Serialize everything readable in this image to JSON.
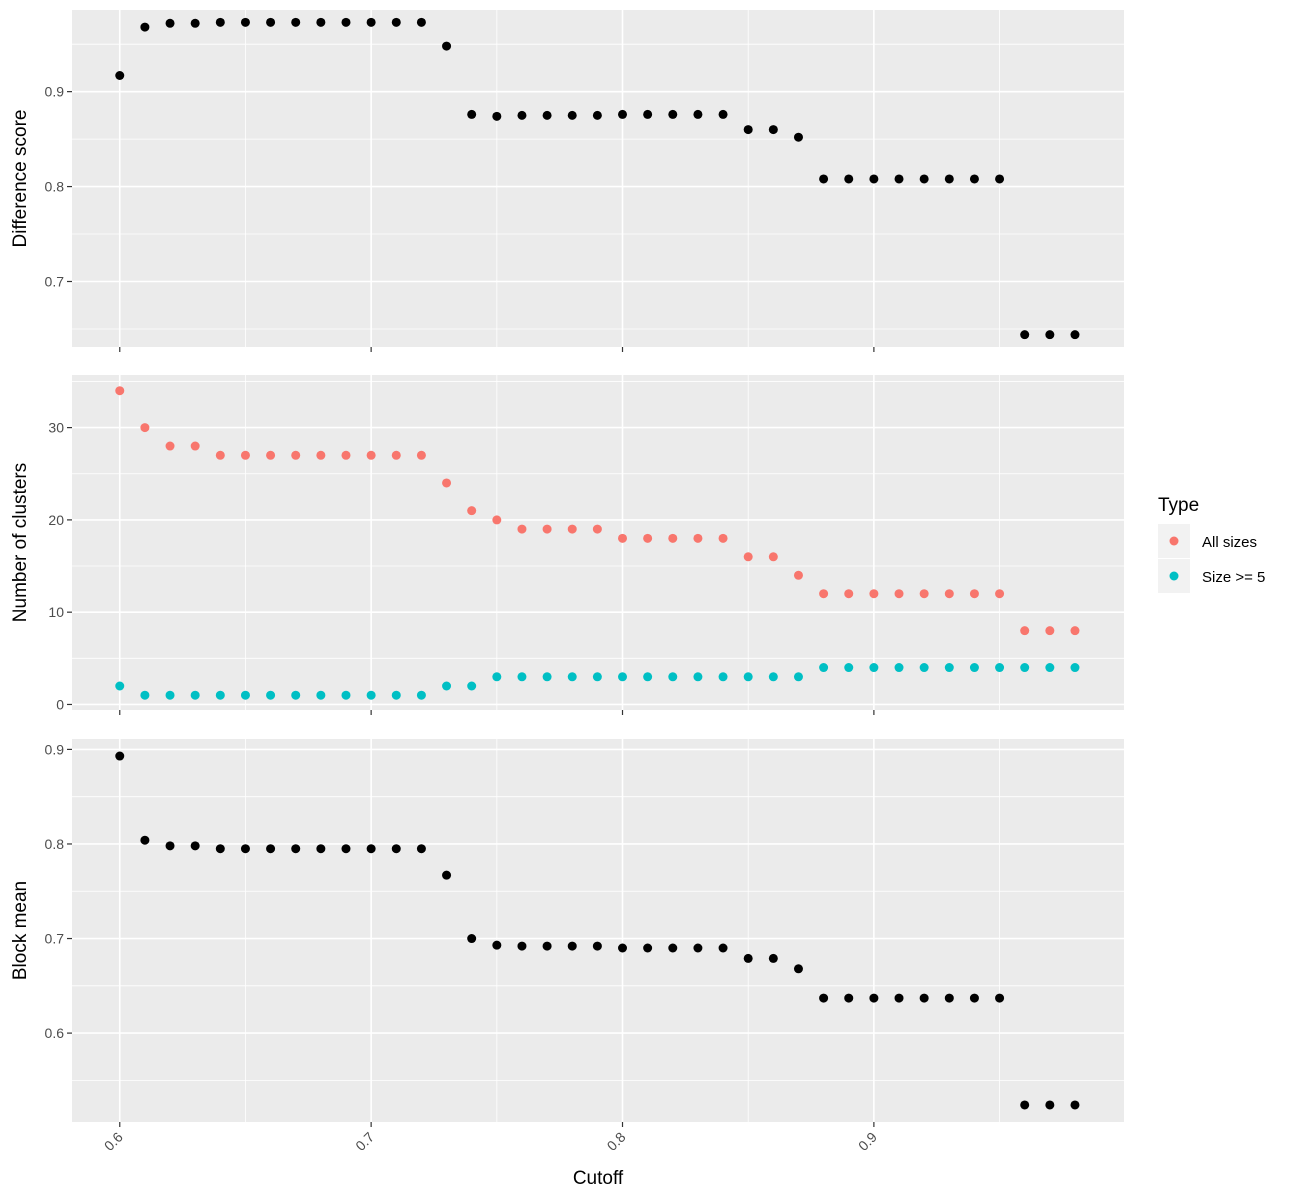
{
  "chart_data": {
    "type": "scatter",
    "xlabel": "Cutoff",
    "x_ticks": [
      "0.6",
      "0.7",
      "0.8",
      "0.9"
    ],
    "x_tick_values": [
      0.6,
      0.7,
      0.8,
      0.9
    ],
    "xlim": [
      0.581,
      0.9995
    ],
    "grid": true,
    "legend": {
      "title": "Type",
      "position": "right",
      "entries": [
        {
          "label": "All sizes",
          "color": "#F8766D"
        },
        {
          "label": "Size >= 5",
          "color": "#00BFC4"
        }
      ]
    },
    "x": [
      0.6,
      0.61,
      0.62,
      0.63,
      0.64,
      0.65,
      0.66,
      0.67,
      0.68,
      0.69,
      0.7,
      0.71,
      0.72,
      0.73,
      0.74,
      0.75,
      0.76,
      0.77,
      0.78,
      0.79,
      0.8,
      0.81,
      0.82,
      0.83,
      0.84,
      0.85,
      0.86,
      0.87,
      0.88,
      0.89,
      0.9,
      0.91,
      0.92,
      0.93,
      0.94,
      0.95,
      0.96,
      0.97,
      0.98
    ],
    "panels": [
      {
        "ylabel": "Difference score",
        "y_ticks": [
          "0.7",
          "0.8",
          "0.9"
        ],
        "y_tick_values": [
          0.7,
          0.8,
          0.9
        ],
        "ylim": [
          0.631,
          0.986
        ],
        "series": [
          {
            "color": "#000000",
            "values": [
              0.917,
              0.968,
              0.972,
              0.972,
              0.973,
              0.973,
              0.973,
              0.973,
              0.973,
              0.973,
              0.973,
              0.973,
              0.973,
              0.948,
              0.876,
              0.874,
              0.875,
              0.875,
              0.875,
              0.875,
              0.876,
              0.876,
              0.876,
              0.876,
              0.876,
              0.86,
              0.86,
              0.852,
              0.808,
              0.808,
              0.808,
              0.808,
              0.808,
              0.808,
              0.808,
              0.808,
              0.644,
              0.644,
              0.644
            ]
          }
        ]
      },
      {
        "ylabel": "Number of clusters",
        "y_ticks": [
          "0",
          "10",
          "20",
          "30"
        ],
        "y_tick_values": [
          0,
          10,
          20,
          30
        ],
        "ylim": [
          -0.6,
          35.7
        ],
        "series": [
          {
            "name": "All sizes",
            "color": "#F8766D",
            "values": [
              34,
              30,
              28,
              28,
              27,
              27,
              27,
              27,
              27,
              27,
              27,
              27,
              27,
              24,
              21,
              20,
              19,
              19,
              19,
              19,
              18,
              18,
              18,
              18,
              18,
              16,
              16,
              14,
              12,
              12,
              12,
              12,
              12,
              12,
              12,
              12,
              8,
              8,
              8
            ]
          },
          {
            "name": "Size >= 5",
            "color": "#00BFC4",
            "values": [
              2,
              1,
              1,
              1,
              1,
              1,
              1,
              1,
              1,
              1,
              1,
              1,
              1,
              2,
              2,
              3,
              3,
              3,
              3,
              3,
              3,
              3,
              3,
              3,
              3,
              3,
              3,
              3,
              4,
              4,
              4,
              4,
              4,
              4,
              4,
              4,
              4,
              4,
              4
            ]
          }
        ]
      },
      {
        "ylabel": "Block mean",
        "y_ticks": [
          "0.6",
          "0.7",
          "0.8",
          "0.9"
        ],
        "y_tick_values": [
          0.6,
          0.7,
          0.8,
          0.9
        ],
        "ylim": [
          0.506,
          0.911
        ],
        "series": [
          {
            "color": "#000000",
            "values": [
              0.893,
              0.804,
              0.798,
              0.798,
              0.795,
              0.795,
              0.795,
              0.795,
              0.795,
              0.795,
              0.795,
              0.795,
              0.795,
              0.767,
              0.7,
              0.693,
              0.692,
              0.692,
              0.692,
              0.692,
              0.69,
              0.69,
              0.69,
              0.69,
              0.69,
              0.679,
              0.679,
              0.668,
              0.637,
              0.637,
              0.637,
              0.637,
              0.637,
              0.637,
              0.637,
              0.637,
              0.524,
              0.524,
              0.524
            ]
          }
        ]
      }
    ]
  }
}
